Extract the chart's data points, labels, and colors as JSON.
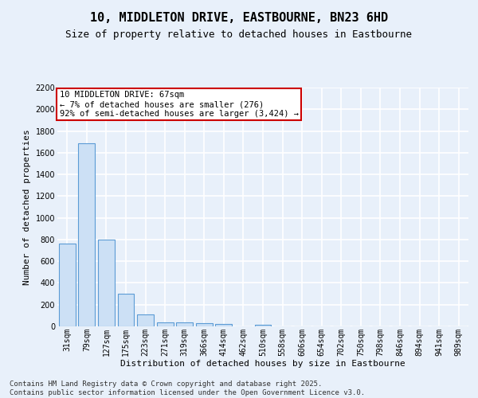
{
  "title_line1": "10, MIDDLETON DRIVE, EASTBOURNE, BN23 6HD",
  "title_line2": "Size of property relative to detached houses in Eastbourne",
  "xlabel": "Distribution of detached houses by size in Eastbourne",
  "ylabel": "Number of detached properties",
  "categories": [
    "31sqm",
    "79sqm",
    "127sqm",
    "175sqm",
    "223sqm",
    "271sqm",
    "319sqm",
    "366sqm",
    "414sqm",
    "462sqm",
    "510sqm",
    "558sqm",
    "606sqm",
    "654sqm",
    "702sqm",
    "750sqm",
    "798sqm",
    "846sqm",
    "894sqm",
    "941sqm",
    "989sqm"
  ],
  "values": [
    760,
    1690,
    800,
    300,
    110,
    40,
    35,
    30,
    20,
    0,
    15,
    0,
    0,
    0,
    0,
    0,
    0,
    0,
    0,
    0,
    0
  ],
  "bar_color": "#cce0f5",
  "bar_edge_color": "#5b9bd5",
  "annotation_text": "10 MIDDLETON DRIVE: 67sqm\n← 7% of detached houses are smaller (276)\n92% of semi-detached houses are larger (3,424) →",
  "annotation_box_edge_color": "#cc0000",
  "annotation_box_face_color": "#ffffff",
  "ylim": [
    0,
    2200
  ],
  "yticks": [
    0,
    200,
    400,
    600,
    800,
    1000,
    1200,
    1400,
    1600,
    1800,
    2000,
    2200
  ],
  "background_color": "#e8f0fa",
  "plot_bg_color": "#e8f0fa",
  "grid_color": "#ffffff",
  "footer_line1": "Contains HM Land Registry data © Crown copyright and database right 2025.",
  "footer_line2": "Contains public sector information licensed under the Open Government Licence v3.0.",
  "title_fontsize": 11,
  "subtitle_fontsize": 9,
  "tick_fontsize": 7,
  "ylabel_fontsize": 8,
  "xlabel_fontsize": 8,
  "footer_fontsize": 6.5,
  "annot_fontsize": 7.5
}
